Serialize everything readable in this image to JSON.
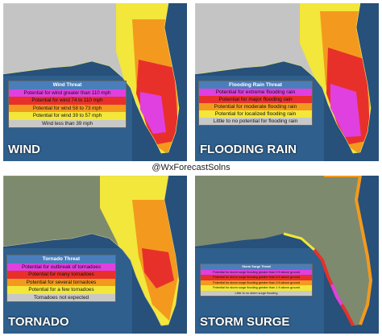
{
  "credit": "@WxForecastSolns",
  "panels": [
    {
      "label": "WIND",
      "legend": {
        "title": "Wind Threat",
        "items": [
          {
            "text": "Potential for wind greater than 110 mph",
            "color": "#e040e0"
          },
          {
            "text": "Potential for wind 74 to 110 mph",
            "color": "#e8302a"
          },
          {
            "text": "Potential for wind 58 to 73 mph",
            "color": "#f39a1e"
          },
          {
            "text": "Potential for wind 39 to 57 mph",
            "color": "#f2e73a"
          },
          {
            "text": "Wind less than 39 mph",
            "color": "#c8c8c8"
          }
        ]
      }
    },
    {
      "label": "FLOODING RAIN",
      "legend": {
        "title": "Flooding Rain Threat",
        "items": [
          {
            "text": "Potential for extreme flooding rain",
            "color": "#e040e0"
          },
          {
            "text": "Potential for major flooding rain",
            "color": "#e8302a"
          },
          {
            "text": "Potential for moderate flooding rain",
            "color": "#f39a1e"
          },
          {
            "text": "Potential for localized flooding rain",
            "color": "#f2e73a"
          },
          {
            "text": "Little to no potential for flooding rain",
            "color": "#c8c8c8"
          }
        ]
      }
    },
    {
      "label": "TORNADO",
      "legend": {
        "title": "Tornado Threat",
        "items": [
          {
            "text": "Potential for outbreak of tornadoes",
            "color": "#e040e0"
          },
          {
            "text": "Potential for many tornadoes",
            "color": "#e8302a"
          },
          {
            "text": "Potential for several tornadoes",
            "color": "#f39a1e"
          },
          {
            "text": "Potential for a few tornadoes",
            "color": "#f2e73a"
          },
          {
            "text": "Tornadoes not expected",
            "color": "#c8c8c8"
          }
        ]
      }
    },
    {
      "label": "STORM SURGE",
      "legend": {
        "title": "Storm Surge Threat",
        "items": [
          {
            "text": "Potential for storm surge flooding greater than 9 ft above ground",
            "color": "#e040e0"
          },
          {
            "text": "Potential for storm surge flooding greater than 6 ft above ground",
            "color": "#e8302a"
          },
          {
            "text": "Potential for storm surge flooding greater than 3 ft above ground",
            "color": "#f39a1e"
          },
          {
            "text": "Potential for storm surge flooding greater than 1 ft above ground",
            "color": "#f2e73a"
          },
          {
            "text": "Little to no storm surge flooding",
            "color": "#c8c8c8"
          }
        ]
      }
    }
  ]
}
